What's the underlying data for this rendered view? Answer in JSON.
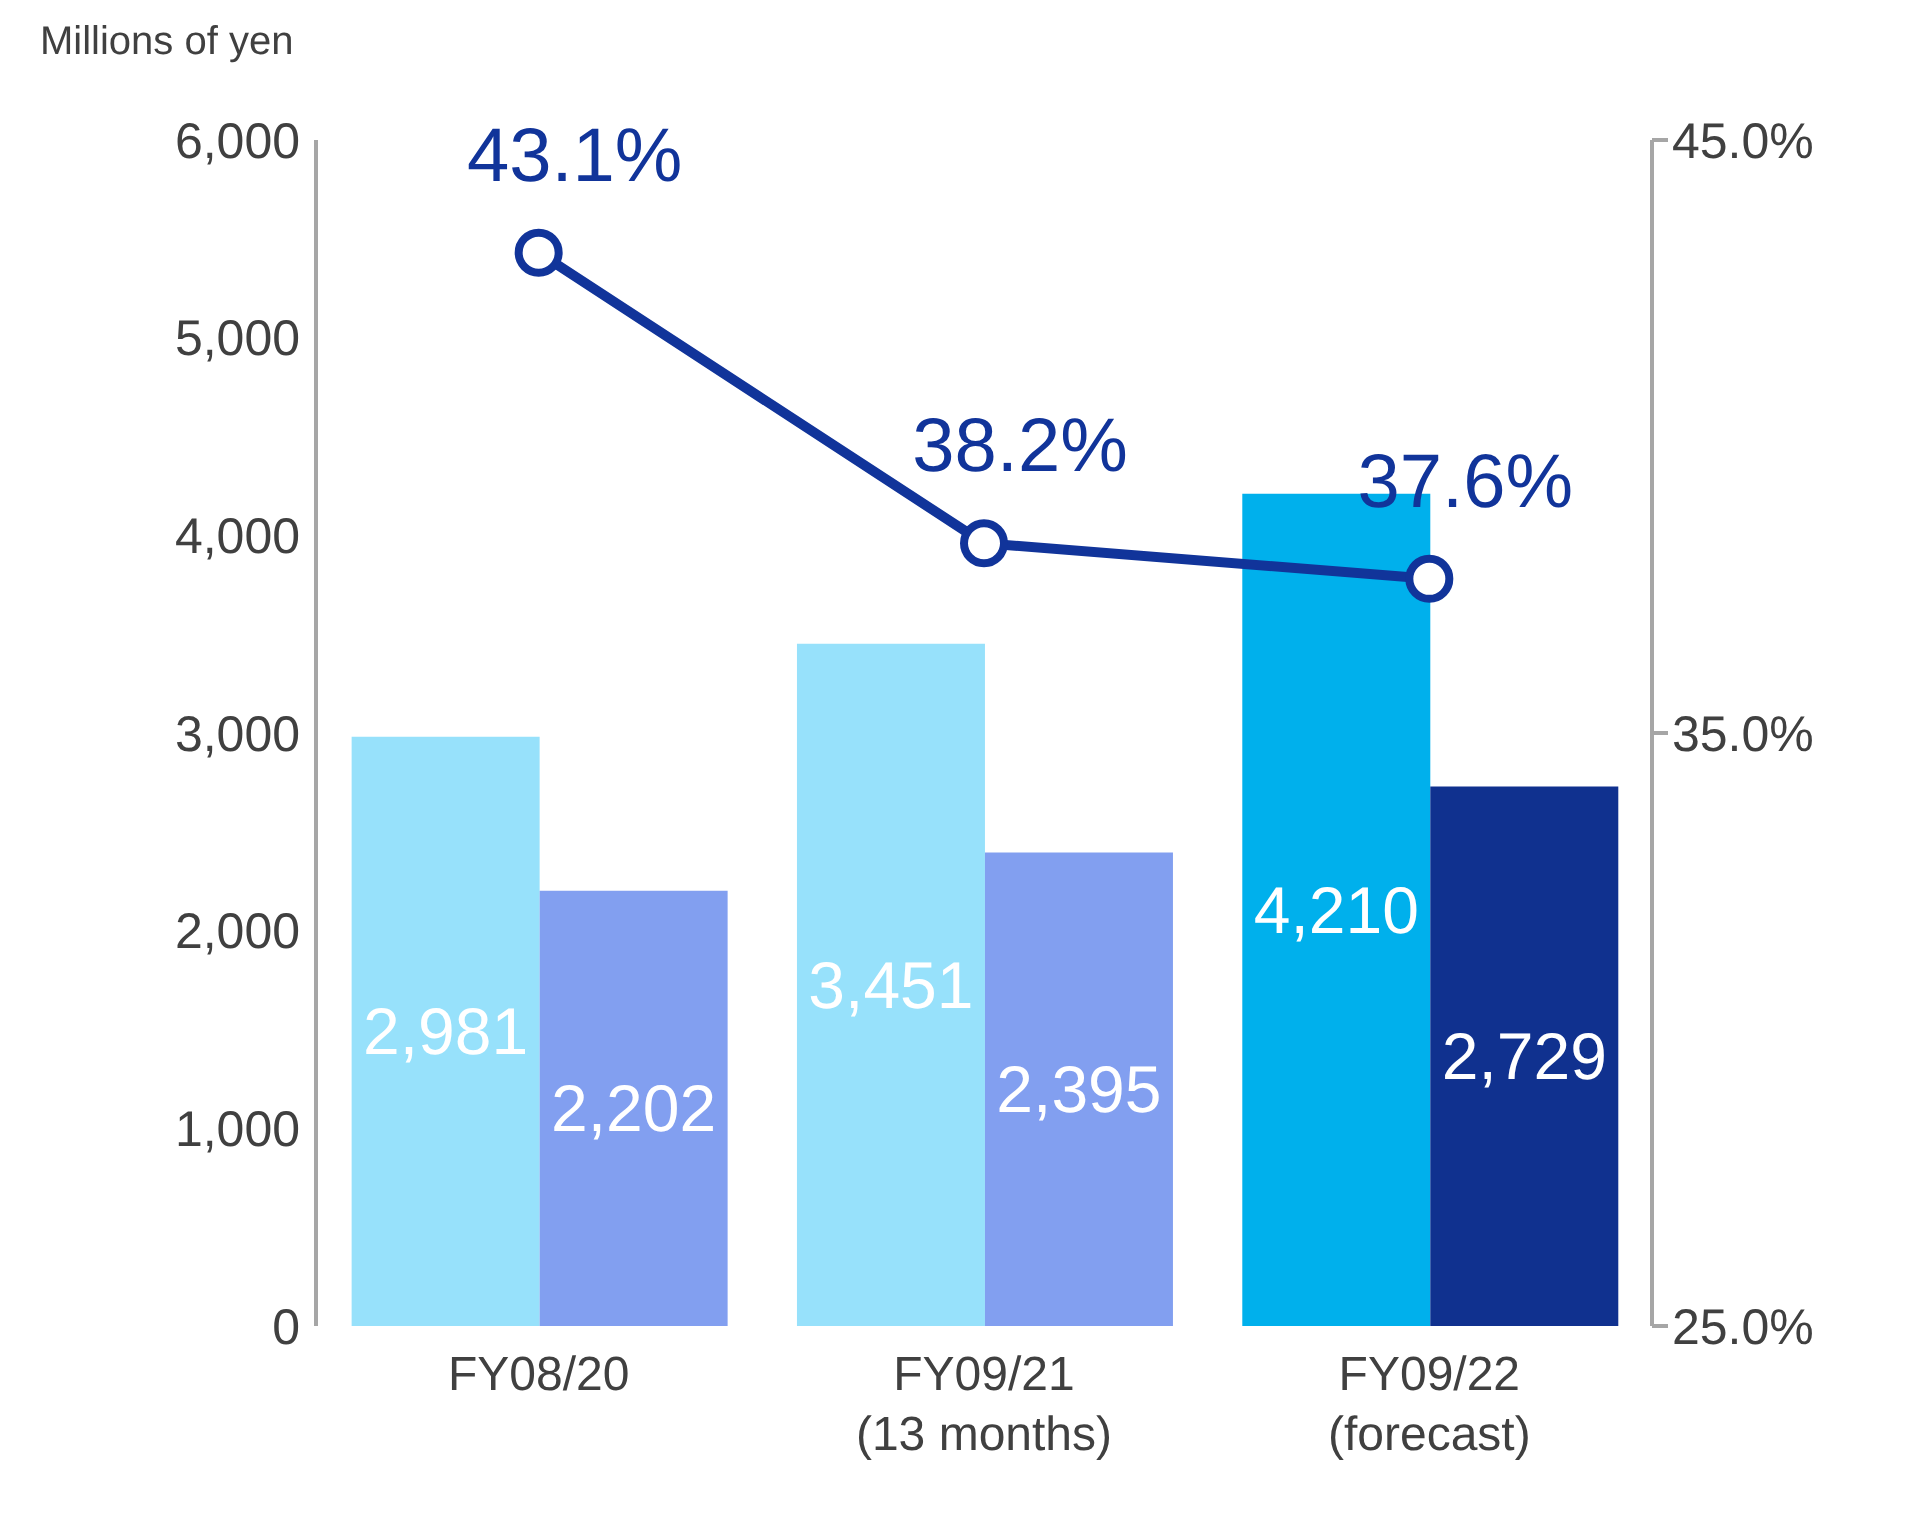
{
  "chart_data": {
    "type": "bar",
    "ylabel": "Millions of yen",
    "categories": [
      "FY08/20",
      "FY09/21\n(13 months)",
      "FY09/22\n(forecast)"
    ],
    "series": [
      {
        "colors": [
          "#97e1fb",
          "#97e1fb",
          "#00b0ec"
        ],
        "values": [
          2981,
          3451,
          4210
        ],
        "value_labels": [
          "2,981",
          "3,451",
          "4,210"
        ]
      },
      {
        "colors": [
          "#829ff0",
          "#829ff0",
          "#10318f"
        ],
        "values": [
          2202,
          2395,
          2729
        ],
        "value_labels": [
          "2,202",
          "2,395",
          "2,729"
        ]
      },
      {
        "type": "line",
        "axis": "y2",
        "color": "#11349a",
        "values": [
          43.1,
          38.2,
          37.6
        ],
        "value_labels": [
          "43.1%",
          "38.2%",
          "37.6%"
        ]
      }
    ],
    "ylim": [
      0,
      6000
    ],
    "yticks": [
      0,
      {
        "value": 1000,
        "label": "1,000"
      },
      {
        "value": 2000,
        "label": "2,000"
      },
      {
        "value": 3000,
        "label": "3,000"
      },
      {
        "value": 4000,
        "label": "4,000"
      },
      {
        "value": 5000,
        "label": "5,000"
      },
      {
        "value": 6000,
        "label": "6,000"
      }
    ],
    "y2lim": [
      25,
      45
    ],
    "y2ticks": [
      {
        "value": 25,
        "label": "25.0%"
      },
      {
        "value": 35,
        "label": "35.0%"
      },
      {
        "value": 45,
        "label": "45.0%"
      }
    ],
    "marker": "circle",
    "grid": false,
    "legend": false
  }
}
